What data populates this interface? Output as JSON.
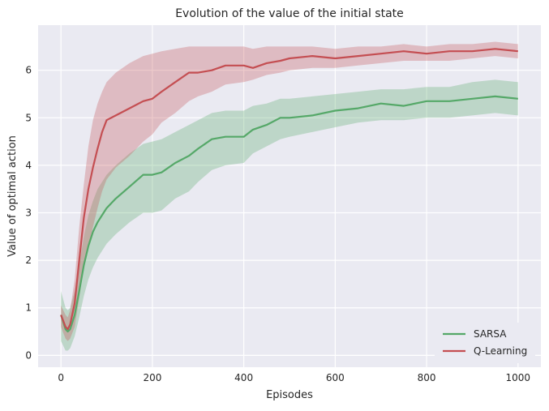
{
  "chart_data": {
    "type": "line",
    "title": "Evolution of the value of the initial state",
    "xlabel": "Episodes",
    "ylabel": "Value of optimal action",
    "xlim": [
      -50,
      1050
    ],
    "ylim": [
      -0.25,
      6.95
    ],
    "xticks": [
      0,
      200,
      400,
      600,
      800,
      1000
    ],
    "yticks": [
      0,
      1,
      2,
      3,
      4,
      5,
      6
    ],
    "grid": true,
    "legend_position": "lower-right",
    "background": "#eaeaf2",
    "series": [
      {
        "name": "SARSA",
        "color": "#55a868",
        "x": [
          0,
          10,
          15,
          20,
          30,
          40,
          50,
          60,
          70,
          80,
          90,
          100,
          120,
          150,
          180,
          200,
          220,
          250,
          280,
          300,
          330,
          360,
          400,
          420,
          450,
          480,
          500,
          550,
          600,
          650,
          700,
          750,
          800,
          850,
          900,
          950,
          1000
        ],
        "mean": [
          0.85,
          0.55,
          0.5,
          0.55,
          0.85,
          1.35,
          1.9,
          2.3,
          2.6,
          2.8,
          2.95,
          3.1,
          3.3,
          3.55,
          3.8,
          3.8,
          3.85,
          4.05,
          4.2,
          4.35,
          4.55,
          4.6,
          4.6,
          4.75,
          4.85,
          5.0,
          5.0,
          5.05,
          5.15,
          5.2,
          5.3,
          5.25,
          5.35,
          5.35,
          5.4,
          5.45,
          5.4
        ],
        "lower": [
          0.3,
          0.1,
          0.1,
          0.15,
          0.4,
          0.8,
          1.25,
          1.6,
          1.85,
          2.05,
          2.2,
          2.35,
          2.55,
          2.8,
          3.0,
          3.0,
          3.05,
          3.3,
          3.45,
          3.65,
          3.9,
          4.0,
          4.05,
          4.25,
          4.4,
          4.55,
          4.6,
          4.7,
          4.8,
          4.9,
          4.95,
          4.95,
          5.0,
          5.0,
          5.05,
          5.1,
          5.05
        ],
        "upper": [
          1.35,
          1.0,
          0.95,
          1.0,
          1.35,
          1.9,
          2.5,
          2.95,
          3.25,
          3.5,
          3.65,
          3.8,
          4.0,
          4.25,
          4.45,
          4.5,
          4.55,
          4.7,
          4.85,
          4.95,
          5.1,
          5.15,
          5.15,
          5.25,
          5.3,
          5.4,
          5.4,
          5.45,
          5.5,
          5.55,
          5.6,
          5.6,
          5.65,
          5.65,
          5.75,
          5.8,
          5.75
        ]
      },
      {
        "name": "Q-Learning",
        "color": "#c44e52",
        "x": [
          0,
          10,
          15,
          20,
          30,
          40,
          50,
          60,
          70,
          80,
          90,
          100,
          120,
          150,
          180,
          200,
          220,
          250,
          280,
          300,
          330,
          360,
          400,
          420,
          450,
          480,
          500,
          550,
          600,
          650,
          700,
          750,
          800,
          850,
          900,
          950,
          1000
        ],
        "mean": [
          0.85,
          0.6,
          0.55,
          0.65,
          1.1,
          2.0,
          2.9,
          3.5,
          3.95,
          4.35,
          4.7,
          4.95,
          5.05,
          5.2,
          5.35,
          5.4,
          5.55,
          5.75,
          5.95,
          5.95,
          6.0,
          6.1,
          6.1,
          6.05,
          6.15,
          6.2,
          6.25,
          6.3,
          6.25,
          6.3,
          6.35,
          6.4,
          6.35,
          6.4,
          6.4,
          6.45,
          6.4
        ],
        "lower": [
          0.6,
          0.35,
          0.3,
          0.35,
          0.6,
          1.2,
          1.9,
          2.3,
          2.7,
          3.1,
          3.45,
          3.7,
          3.95,
          4.2,
          4.5,
          4.65,
          4.9,
          5.1,
          5.35,
          5.45,
          5.55,
          5.7,
          5.75,
          5.8,
          5.9,
          5.95,
          6.0,
          6.05,
          6.05,
          6.1,
          6.15,
          6.2,
          6.2,
          6.2,
          6.25,
          6.3,
          6.25
        ],
        "upper": [
          1.05,
          0.85,
          0.8,
          0.95,
          1.6,
          2.7,
          3.6,
          4.4,
          4.95,
          5.3,
          5.55,
          5.75,
          5.95,
          6.15,
          6.3,
          6.35,
          6.4,
          6.45,
          6.5,
          6.5,
          6.5,
          6.5,
          6.5,
          6.45,
          6.5,
          6.5,
          6.5,
          6.5,
          6.45,
          6.5,
          6.5,
          6.55,
          6.5,
          6.55,
          6.55,
          6.6,
          6.55
        ]
      }
    ]
  }
}
